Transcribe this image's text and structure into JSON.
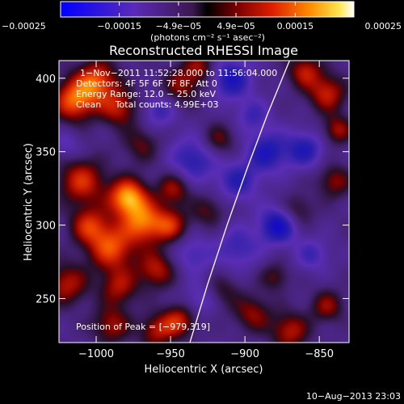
{
  "chart_data": {
    "type": "heatmap",
    "title": "Reconstructed RHESSI Image",
    "xlabel": "Heliocentric X (arcsec)",
    "ylabel": "Heliocentric Y (arcsec)",
    "xlim": [
      -1025,
      -830
    ],
    "ylim": [
      220,
      412
    ],
    "x_ticks": [
      -1000,
      -950,
      -900,
      -850
    ],
    "x_tick_labels": [
      "−1000",
      "−950",
      "−900",
      "−850"
    ],
    "y_ticks": [
      250,
      300,
      350,
      400
    ],
    "y_tick_labels": [
      "250",
      "300",
      "350",
      "400"
    ],
    "colorbar": {
      "range": [
        -0.00025,
        0.00025
      ],
      "ticks": [
        -0.00025,
        -0.00015,
        -4.9e-05,
        4.9e-05,
        0.00015,
        0.00025
      ],
      "tick_labels": [
        "−0.00025",
        "−0.00015",
        "−4.9e−05",
        "4.9e−05",
        "0.00015",
        "0.00025"
      ],
      "unit_text": "(photons cm⁻² s⁻¹ asec⁻²)"
    },
    "annotations": [
      "1−Nov−2011 11:52:28.000 to 11:56:04.000",
      "Detectors: 4F 5F 6F 7F 8F, Att 0",
      "Energy Range: 12.0 − 25.0 keV",
      "Clean     Total counts: 4.99E+03"
    ],
    "peak_label": "Position of Peak = [−979,319]",
    "peak": {
      "x": -979,
      "y": 319
    },
    "limb_curve": [
      [
        -937,
        220
      ],
      [
        -925,
        260
      ],
      [
        -912,
        300
      ],
      [
        -898,
        340
      ],
      [
        -885,
        375
      ],
      [
        -870,
        412
      ]
    ],
    "footer": "10−Aug−2013 23:03",
    "blobs": [
      {
        "x": -979,
        "y": 319,
        "v": 1.0,
        "s": 9
      },
      {
        "x": -968,
        "y": 302,
        "v": 0.8,
        "s": 10
      },
      {
        "x": -990,
        "y": 285,
        "v": 0.75,
        "s": 11
      },
      {
        "x": -1010,
        "y": 330,
        "v": 0.65,
        "s": 11
      },
      {
        "x": -1005,
        "y": 300,
        "v": 0.6,
        "s": 9
      },
      {
        "x": -1015,
        "y": 385,
        "v": 0.8,
        "s": 10
      },
      {
        "x": -1000,
        "y": 398,
        "v": 0.75,
        "s": 10
      },
      {
        "x": -985,
        "y": 380,
        "v": 0.55,
        "s": 9
      },
      {
        "x": -1020,
        "y": 260,
        "v": 0.55,
        "s": 10
      },
      {
        "x": -985,
        "y": 258,
        "v": 0.5,
        "s": 9
      },
      {
        "x": -960,
        "y": 270,
        "v": 0.55,
        "s": 9
      },
      {
        "x": -950,
        "y": 300,
        "v": 0.55,
        "s": 8
      },
      {
        "x": -948,
        "y": 325,
        "v": 0.5,
        "s": 8
      },
      {
        "x": -990,
        "y": 232,
        "v": 0.5,
        "s": 9
      },
      {
        "x": -960,
        "y": 228,
        "v": 0.5,
        "s": 8
      },
      {
        "x": -945,
        "y": 235,
        "v": 0.6,
        "s": 8
      },
      {
        "x": -970,
        "y": 355,
        "v": 0.35,
        "s": 9
      },
      {
        "x": -943,
        "y": 395,
        "v": 0.45,
        "s": 9
      },
      {
        "x": -930,
        "y": 408,
        "v": 0.45,
        "s": 8
      },
      {
        "x": -918,
        "y": 358,
        "v": 0.4,
        "s": 8
      },
      {
        "x": -925,
        "y": 310,
        "v": 0.35,
        "s": 8
      },
      {
        "x": -915,
        "y": 255,
        "v": 0.3,
        "s": 8
      },
      {
        "x": -895,
        "y": 240,
        "v": 0.45,
        "s": 9
      },
      {
        "x": -870,
        "y": 228,
        "v": 0.55,
        "s": 9
      },
      {
        "x": -845,
        "y": 245,
        "v": 0.45,
        "s": 8
      },
      {
        "x": -880,
        "y": 265,
        "v": 0.35,
        "s": 7
      },
      {
        "x": -865,
        "y": 310,
        "v": 0.35,
        "s": 8
      },
      {
        "x": -840,
        "y": 330,
        "v": 0.45,
        "s": 8
      },
      {
        "x": -845,
        "y": 390,
        "v": 0.6,
        "s": 9
      },
      {
        "x": -860,
        "y": 405,
        "v": 0.55,
        "s": 8
      },
      {
        "x": -838,
        "y": 365,
        "v": 0.5,
        "s": 7
      },
      {
        "x": -910,
        "y": 400,
        "v": -0.6,
        "s": 10
      },
      {
        "x": -935,
        "y": 345,
        "v": -0.5,
        "s": 11
      },
      {
        "x": -905,
        "y": 330,
        "v": -0.45,
        "s": 10
      },
      {
        "x": -885,
        "y": 350,
        "v": -0.55,
        "s": 10
      },
      {
        "x": -878,
        "y": 300,
        "v": -0.7,
        "s": 9
      },
      {
        "x": -860,
        "y": 352,
        "v": -0.5,
        "s": 9
      },
      {
        "x": -905,
        "y": 285,
        "v": -0.4,
        "s": 10
      },
      {
        "x": -935,
        "y": 280,
        "v": -0.35,
        "s": 9
      },
      {
        "x": -958,
        "y": 378,
        "v": -0.4,
        "s": 8
      },
      {
        "x": -895,
        "y": 375,
        "v": -0.35,
        "s": 8
      },
      {
        "x": -855,
        "y": 280,
        "v": -0.35,
        "s": 8
      },
      {
        "x": -1020,
        "y": 355,
        "v": -0.25,
        "s": 7
      },
      {
        "x": -930,
        "y": 250,
        "v": -0.3,
        "s": 8
      }
    ]
  }
}
